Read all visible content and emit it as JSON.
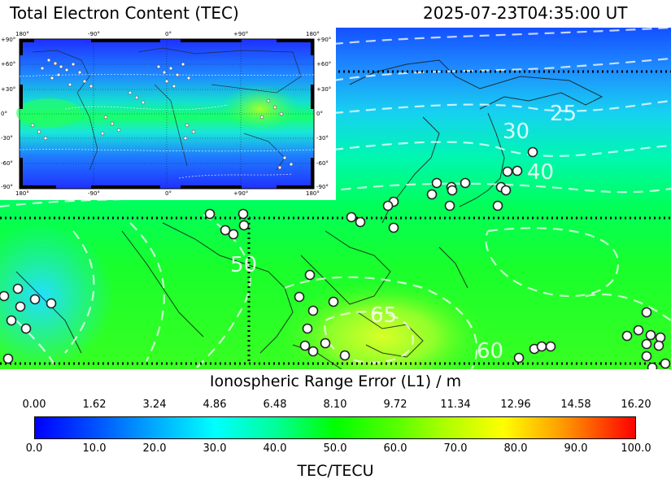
{
  "header": {
    "title": "Total Electron Content (TEC)",
    "timestamp": "2025-07-23T04:35:00 UT"
  },
  "map": {
    "contour_labels": [
      "25",
      "30",
      "40",
      "50",
      "60",
      "65"
    ],
    "colors": {
      "station": "#ffffff",
      "coast": "#1a1a1a",
      "grid": "#000000"
    }
  },
  "inset": {
    "top_ticks": [
      "180°",
      "-90°",
      "0°",
      "+90°",
      "180°"
    ],
    "bottom_ticks": [
      "180°",
      "-90°",
      "0°",
      "+90°",
      "180°"
    ],
    "right_ticks": [
      "+90°",
      "+60°",
      "+30°",
      "0°",
      "-30°",
      "-60°",
      "-90°"
    ],
    "left_ticks": [
      "+90°",
      "+60°",
      "+30°",
      "0°",
      "-30°",
      "-60°",
      "-90°"
    ]
  },
  "colorbar": {
    "range_label": "Ionospheric Range Error (L1) / m",
    "range_ticks": [
      "0.00",
      "1.62",
      "3.24",
      "4.86",
      "6.48",
      "8.10",
      "9.72",
      "11.34",
      "12.96",
      "14.58",
      "16.20"
    ],
    "tec_ticks": [
      "0.0",
      "10.0",
      "20.0",
      "30.0",
      "40.0",
      "50.0",
      "60.0",
      "70.0",
      "80.0",
      "90.0",
      "100.0"
    ],
    "tec_label": "TEC/TECU",
    "min": 0,
    "max": 100
  }
}
